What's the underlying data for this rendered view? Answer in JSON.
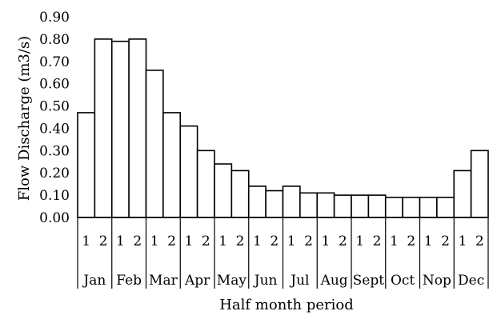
{
  "chart_data": {
    "type": "bar",
    "xlabel": "Half month period",
    "ylabel": "Flow Discharge (m3/s)",
    "ylim": [
      0,
      0.9
    ],
    "yticks": [
      "0.00",
      "0.10",
      "0.20",
      "0.30",
      "0.40",
      "0.50",
      "0.60",
      "0.70",
      "0.80",
      "0.90"
    ],
    "grid": false,
    "legend": "none",
    "months": [
      "Jan",
      "Feb",
      "Mar",
      "Apr",
      "May",
      "Jun",
      "Jul",
      "Aug",
      "Sept",
      "Oct",
      "Nop",
      "Dec"
    ],
    "halves": [
      "1",
      "2"
    ],
    "values": [
      0.47,
      0.8,
      0.79,
      0.8,
      0.66,
      0.47,
      0.41,
      0.3,
      0.24,
      0.21,
      0.14,
      0.12,
      0.14,
      0.11,
      0.11,
      0.1,
      0.1,
      0.1,
      0.09,
      0.09,
      0.09,
      0.09,
      0.21,
      0.3
    ],
    "bar_fill": "#ffffff",
    "bar_stroke": "#000000"
  }
}
